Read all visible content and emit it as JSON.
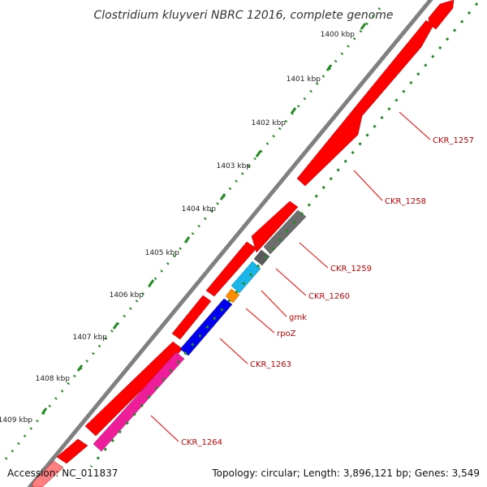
{
  "title": "Clostridium kluyveri NBRC 12016, complete genome",
  "footer": {
    "accession": "Accession: NC_011837",
    "summary": "Topology: circular; Length: 3,896,121 bp; Genes: 3,549"
  },
  "scale_labels": [
    "1400 kbp",
    "1401 kbp",
    "1402 kbp",
    "1403 kbp",
    "1404 kbp",
    "1405 kbp",
    "1406 kbp",
    "1407 kbp",
    "1408 kbp",
    "1409 kbp"
  ],
  "genes": [
    {
      "label": "CKR_1257",
      "color": "#ff0000"
    },
    {
      "label": "CKR_1258",
      "color": "#ff0000"
    },
    {
      "label": "CKR_1259",
      "color": "#6e6e6e"
    },
    {
      "label": "CKR_1260",
      "color": "#1ab6ea"
    },
    {
      "label": "gmk",
      "color": "#1ab6ea"
    },
    {
      "label": "rpoZ",
      "color": "#ff8c00"
    },
    {
      "label": "CKR_1263",
      "color": "#0000ee"
    },
    {
      "label": "CKR_1264",
      "color": "#ee1e9a"
    }
  ],
  "colors": {
    "backbone": "#808080",
    "forward_feature": "#ff0000",
    "ticks_major": "#228b22",
    "ticks_minor": "#3a9a3a",
    "label_line": "#ff0000",
    "label_text": "#cc0000"
  }
}
